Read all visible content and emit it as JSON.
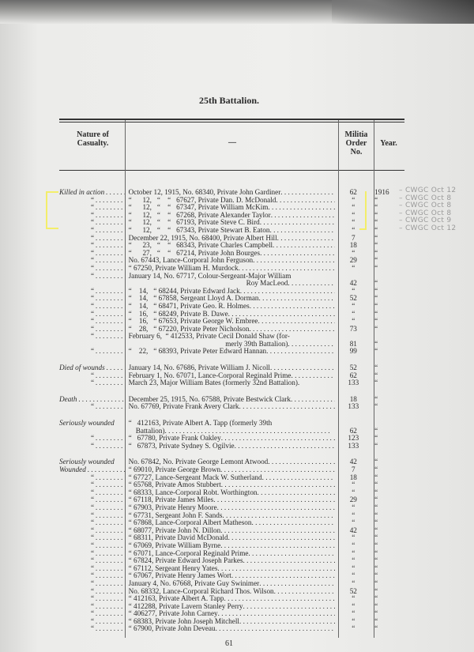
{
  "title": "25th Battalion.",
  "headers": {
    "nature": "Nature of Casualty.",
    "description": "—",
    "order": "Militia Order No.",
    "year": "Year."
  },
  "highlight_color": "#f3ee6a",
  "groups": [
    {
      "rows": [
        {
          "nature": "Killed in action",
          "desc": "October 12, 1915, No. 68340, Private John Gardiner",
          "order": "62",
          "year": "1916"
        },
        {
          "nature": "“",
          "desc": "“      12,   “    “   67627, Private Dan. D. McDonald",
          "order": "“",
          "year": "“"
        },
        {
          "nature": "“",
          "desc": "“      12,   “    “   67347, Private William McKim",
          "order": "“",
          "year": "“"
        },
        {
          "nature": "“",
          "desc": "“      12,   “    “   67268, Private Alexander Taylor",
          "order": "“",
          "year": "“"
        },
        {
          "nature": "“",
          "desc": "“      12,   “    “   67193, Private Steve C. Bird",
          "order": "“",
          "year": "“"
        },
        {
          "nature": "“",
          "desc": "“      12,   “    “   67343, Private Stewart B. Eaton",
          "order": "“",
          "year": "“"
        },
        {
          "nature": "“",
          "desc": "December 22, 1915, No. 68400, Private Albert Hill",
          "order": "7",
          "year": "“"
        },
        {
          "nature": "“",
          "desc": "“      23,   “    “   68343, Private Charles Campbell",
          "order": "18",
          "year": "“"
        },
        {
          "nature": "“",
          "desc": "“      27,   “    “   67214, Private John Bourges",
          "order": "“",
          "year": "“"
        },
        {
          "nature": "“",
          "desc": "No. 67443, Lance-Corporal John Ferguson",
          "order": "29",
          "year": "“"
        },
        {
          "nature": "“",
          "desc": "“ 67250, Private William H. Murdock",
          "order": "“",
          "year": "“"
        },
        {
          "nature": "“",
          "desc": "January 14, No. 67717, Colour-Sergeant-Major William",
          "order": "",
          "year": "",
          "noleader": true
        },
        {
          "nature": "",
          "desc": "Roy MacLeod",
          "order": "42",
          "year": "“",
          "cont": true
        },
        {
          "nature": "“",
          "desc": "“    14,   “ 68244, Private Edward Jack",
          "order": "“",
          "year": "“"
        },
        {
          "nature": "“",
          "desc": "“    14,   “ 67858, Sergeant Lloyd A. Dorman",
          "order": "52",
          "year": "“"
        },
        {
          "nature": "“",
          "desc": "“    14,   “ 68471, Private Geo. R. Holmes",
          "order": "“",
          "year": "“"
        },
        {
          "nature": "“",
          "desc": "“    16,   “ 68249, Private B. Dawe",
          "order": "“",
          "year": "“"
        },
        {
          "nature": "“",
          "desc": "“    16,   “ 67653, Private George W. Embree",
          "order": "“",
          "year": "“"
        },
        {
          "nature": "“",
          "desc": "“    28,   “ 67220, Private Peter Nicholson",
          "order": "73",
          "year": "“"
        },
        {
          "nature": "“",
          "desc": "February 6,  “ 412533, Private Cecil Donald Shaw (for-",
          "order": "",
          "year": "",
          "noleader": true
        },
        {
          "nature": "",
          "desc": "merly 39th Battalion)",
          "order": "81",
          "year": "“",
          "cont": true
        },
        {
          "nature": "“",
          "desc": "“    22,   “ 68393, Private Peter Edward Hannan",
          "order": "99",
          "year": "“"
        }
      ]
    },
    {
      "rows": [
        {
          "nature": "Died of wounds",
          "desc": "January 14, No. 67686, Private William J. Nicoll",
          "order": "52",
          "year": "“"
        },
        {
          "nature": "“",
          "desc": "February 1, No. 67071, Lance-Corporal Reginald Prime",
          "order": "62",
          "year": "“"
        },
        {
          "nature": "“",
          "desc": "March 23, Major William Bates (formerly 32nd Battalion).",
          "order": "133",
          "year": "“",
          "noleader": true
        }
      ]
    },
    {
      "rows": [
        {
          "nature": "Death",
          "desc": "December 25, 1915, No. 67588, Private Bestwick Clark",
          "order": "18",
          "year": "“"
        },
        {
          "nature": "“",
          "desc": "No. 67769, Private Frank Avery Clark",
          "order": "133",
          "year": "“"
        }
      ]
    },
    {
      "rows": [
        {
          "nature": "Seriously wounded",
          "desc": "“   412163, Private Albert A. Tapp (formerly 39th",
          "order": "",
          "year": "",
          "noleader": true,
          "noNatLeader": true
        },
        {
          "nature": "",
          "desc": "    Battalion)",
          "order": "62",
          "year": "“"
        },
        {
          "nature": "“",
          "desc": "“   67780, Private Frank Oakley",
          "order": "123",
          "year": "“"
        },
        {
          "nature": "“",
          "desc": "“   67873, Private Sydney S. Ogilvie",
          "order": "133",
          "year": "“"
        }
      ]
    },
    {
      "rows": [
        {
          "nature": "Seriously wounded",
          "desc": "No. 67842, No. Private George Lemont Atwood",
          "order": "42",
          "year": "“",
          "noNatLeader": true
        },
        {
          "nature": "Wounded",
          "desc": "“ 69010, Private George Brown",
          "order": "7",
          "year": "“"
        },
        {
          "nature": "“",
          "desc": "“ 67727, Lance-Sergeant Mack W. Sutherland",
          "order": "18",
          "year": "“"
        },
        {
          "nature": "“",
          "desc": "“ 65768, Private Amos Stubbert",
          "order": "“",
          "year": "“"
        },
        {
          "nature": "“",
          "desc": "“ 68333, Lance-Corporal Robt. Worthington",
          "order": "“",
          "year": "“"
        },
        {
          "nature": "“",
          "desc": "“ 67118, Private James Miles",
          "order": "29",
          "year": "“"
        },
        {
          "nature": "“",
          "desc": "“ 67903, Private Henry Moore",
          "order": "“",
          "year": "“"
        },
        {
          "nature": "“",
          "desc": "“ 67731, Sergeant John F. Sands",
          "order": "“",
          "year": "“"
        },
        {
          "nature": "“",
          "desc": "“ 67868, Lance-Corporal Albert Matheson",
          "order": "“",
          "year": "“"
        },
        {
          "nature": "“",
          "desc": "“ 68077, Private John N. Dillon",
          "order": "42",
          "year": "“"
        },
        {
          "nature": "“",
          "desc": "“ 68311, Private David McDonald",
          "order": "“",
          "year": "“"
        },
        {
          "nature": "“",
          "desc": "“ 67069, Private William Byrne",
          "order": "“",
          "year": "“"
        },
        {
          "nature": "“",
          "desc": "“ 67071, Lance-Corporal Reginald Prime",
          "order": "“",
          "year": "“"
        },
        {
          "nature": "“",
          "desc": "“ 67824, Private Edward Joseph Parkes",
          "order": "“",
          "year": "“"
        },
        {
          "nature": "“",
          "desc": "“ 67112, Sergeant Henry Yates",
          "order": "“",
          "year": "“"
        },
        {
          "nature": "“",
          "desc": "“ 67067, Private Henry James Wort",
          "order": "“",
          "year": "“"
        },
        {
          "nature": "“",
          "desc": "January 4, No. 67668, Private Guy Swinimer",
          "order": "“",
          "year": "“"
        },
        {
          "nature": "“",
          "desc": "No. 68332, Lance-Corporal Richard Thos. Wilson",
          "order": "52",
          "year": "“"
        },
        {
          "nature": "“",
          "desc": "“ 412163, Private Albert A. Tapp",
          "order": "“",
          "year": "“"
        },
        {
          "nature": "“",
          "desc": "“ 412288, Private Lavern Stanley Perry",
          "order": "“",
          "year": "“"
        },
        {
          "nature": "“",
          "desc": "“ 406277, Private John Carney",
          "order": "“",
          "year": "“"
        },
        {
          "nature": "“",
          "desc": "“ 68383, Private John Joseph Mitchell",
          "order": "“",
          "year": "“"
        },
        {
          "nature": "“",
          "desc": "“ 67900, Private John Deveau",
          "order": "“",
          "year": "“"
        }
      ]
    }
  ],
  "handwritten_notes": [
    "– CWGC Oct 12",
    "– CWGC Oct 8",
    "– CWGC Oct 8",
    "– CWGC Oct 8",
    "– CWGC Oct 9",
    "– CWGC Oct 12"
  ],
  "page_number": "61"
}
